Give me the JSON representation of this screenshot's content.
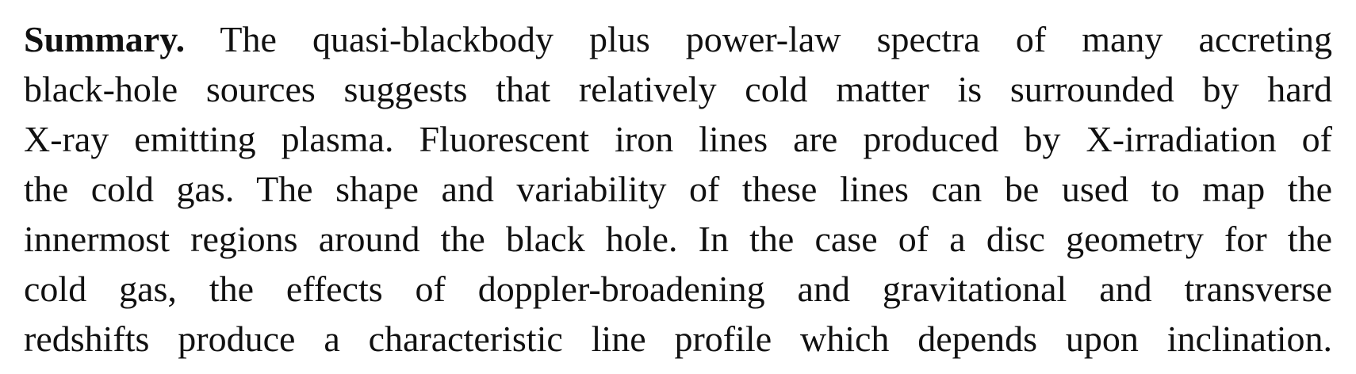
{
  "abstract": {
    "heading": "Summary.",
    "lines": [
      "The quasi-blackbody plus power-law spectra of many accreting",
      "black-hole sources suggests that relatively cold matter is surrounded by hard",
      "X-ray emitting plasma. Fluorescent iron lines are produced by X-irradiation of",
      "the cold gas. The shape and variability of these lines can be used to map the",
      "innermost regions around the black hole. In the case of a disc geometry for the",
      "cold gas, the effects of doppler-broadening and gravitational and transverse",
      "redshifts produce a characteristic line profile which depends upon inclination."
    ]
  }
}
